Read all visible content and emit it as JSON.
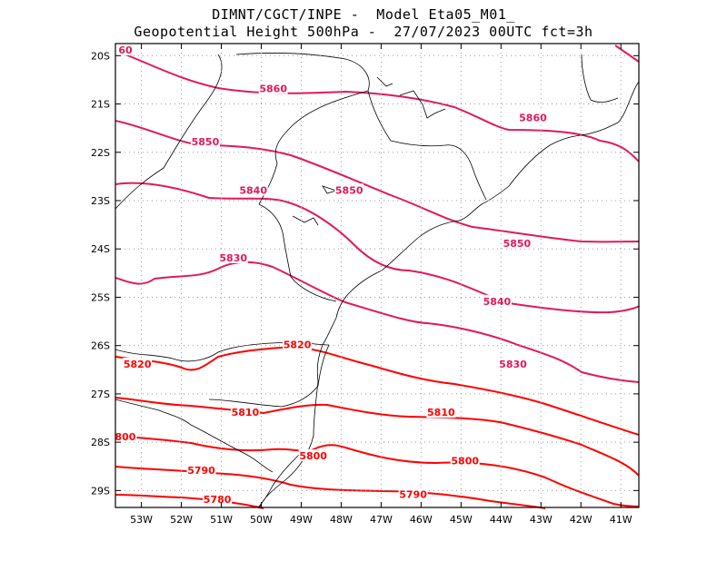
{
  "title_line1": "DIMNT/CGCT/INPE -  Model Eta05_M01_",
  "title_line2": "Geopotential Height 500hPa -  27/07/2023 00UTC fct=3h",
  "lat_ticks": [
    "20S",
    "21S",
    "22S",
    "23S",
    "24S",
    "25S",
    "26S",
    "27S",
    "28S",
    "29S"
  ],
  "lon_ticks": [
    "53W",
    "52W",
    "51W",
    "50W",
    "49W",
    "48W",
    "47W",
    "46W",
    "45W",
    "44W",
    "43W",
    "42W",
    "41W"
  ],
  "colors": {
    "contour_high": "#e0195a",
    "contour_low": "#ff0000",
    "coast": "#000000",
    "grid": "#999999"
  },
  "contours": [
    {
      "value": "5860",
      "color": "#e0195a",
      "labels": [
        {
          "text": "5860",
          "lon": -49.7,
          "lat": -20.7
        },
        {
          "text": "5860",
          "lon": -43.2,
          "lat": -21.3
        },
        {
          "text": "60",
          "lon": -53.4,
          "lat": -19.9
        }
      ]
    },
    {
      "value": "5850",
      "color": "#e0195a",
      "labels": [
        {
          "text": "5850",
          "lon": -51.4,
          "lat": -21.8
        },
        {
          "text": "5850",
          "lon": -47.8,
          "lat": -22.8
        },
        {
          "text": "5850",
          "lon": -43.6,
          "lat": -23.9
        }
      ]
    },
    {
      "value": "5840",
      "color": "#e0195a",
      "labels": [
        {
          "text": "5840",
          "lon": -50.2,
          "lat": -22.8
        },
        {
          "text": "5840",
          "lon": -44.1,
          "lat": -25.1
        }
      ]
    },
    {
      "value": "5830",
      "color": "#e0195a",
      "labels": [
        {
          "text": "5830",
          "lon": -50.7,
          "lat": -24.2
        },
        {
          "text": "5830",
          "lon": -43.7,
          "lat": -26.4
        }
      ]
    },
    {
      "value": "5820",
      "color": "#ff0000",
      "labels": [
        {
          "text": "5820",
          "lon": -49.1,
          "lat": -26.0
        },
        {
          "text": "5820",
          "lon": -53.1,
          "lat": -26.4
        }
      ]
    },
    {
      "value": "5810",
      "color": "#ff0000",
      "labels": [
        {
          "text": "5810",
          "lon": -50.4,
          "lat": -27.4
        },
        {
          "text": "5810",
          "lon": -45.5,
          "lat": -27.4
        }
      ]
    },
    {
      "value": "5800",
      "color": "#ff0000",
      "labels": [
        {
          "text": "5800",
          "lon": -48.7,
          "lat": -28.3
        },
        {
          "text": "5800",
          "lon": -44.9,
          "lat": -28.4
        },
        {
          "text": "800",
          "lon": -53.4,
          "lat": -27.9
        }
      ]
    },
    {
      "value": "5790",
      "color": "#ff0000",
      "labels": [
        {
          "text": "5790",
          "lon": -51.5,
          "lat": -28.6
        },
        {
          "text": "5790",
          "lon": -46.2,
          "lat": -29.1
        }
      ]
    },
    {
      "value": "5780",
      "color": "#ff0000",
      "labels": [
        {
          "text": "5780",
          "lon": -51.1,
          "lat": -29.2
        }
      ]
    }
  ]
}
